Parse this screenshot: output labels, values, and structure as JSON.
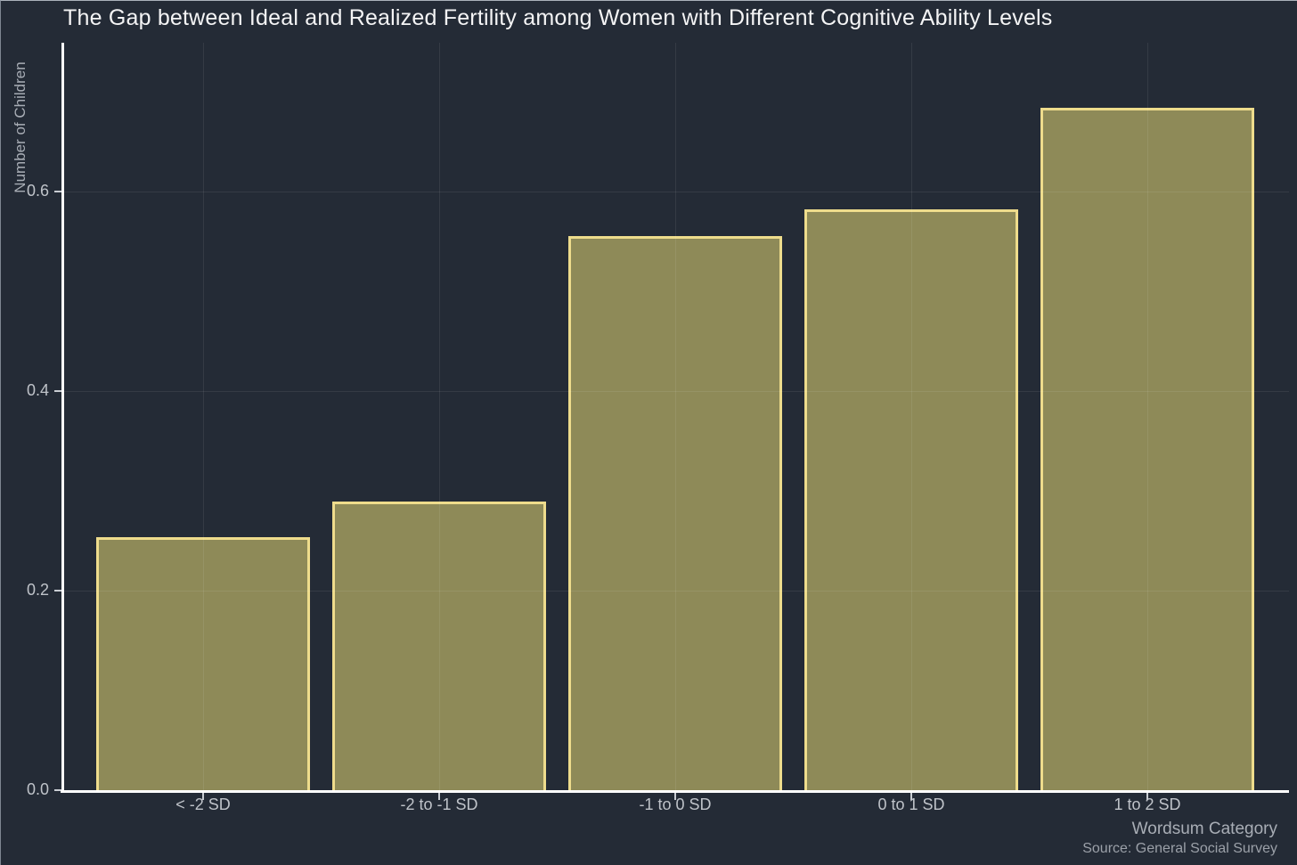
{
  "chart_data": {
    "type": "bar",
    "title": "The Gap between Ideal and Realized Fertility among Women with Different Cognitive Ability Levels",
    "xlabel": "Wordsum Category",
    "ylabel": "Number of Children",
    "caption": "Source: General Social Survey",
    "categories": [
      "< -2 SD",
      "-2 to -1 SD",
      "-1 to 0 SD",
      "0 to 1 SD",
      "1 to 2 SD"
    ],
    "values": [
      0.254,
      0.289,
      0.555,
      0.582,
      0.684
    ],
    "y_ticks": [
      {
        "value": 0.0,
        "label": "0.0"
      },
      {
        "value": 0.2,
        "label": "0.2"
      },
      {
        "value": 0.4,
        "label": "0.4"
      },
      {
        "value": 0.6,
        "label": "0.6"
      }
    ],
    "ylim": [
      0,
      0.75
    ],
    "grid": "major horizontal and vertical, faint, drawn over bars",
    "legend": "none",
    "colors": {
      "background": "#242b36",
      "bar_fill": "#8e8a58",
      "bar_border": "#eedc8c",
      "axis_line": "#ffffff",
      "tick_mark": "#c9cdd3",
      "gridline": "rgba(255,255,255,0.08)",
      "title_text": "#f4f4f5",
      "tick_text": "#bfc3c9",
      "axis_title_text": "#a8adb5",
      "caption_text": "#9ba0a8"
    }
  }
}
